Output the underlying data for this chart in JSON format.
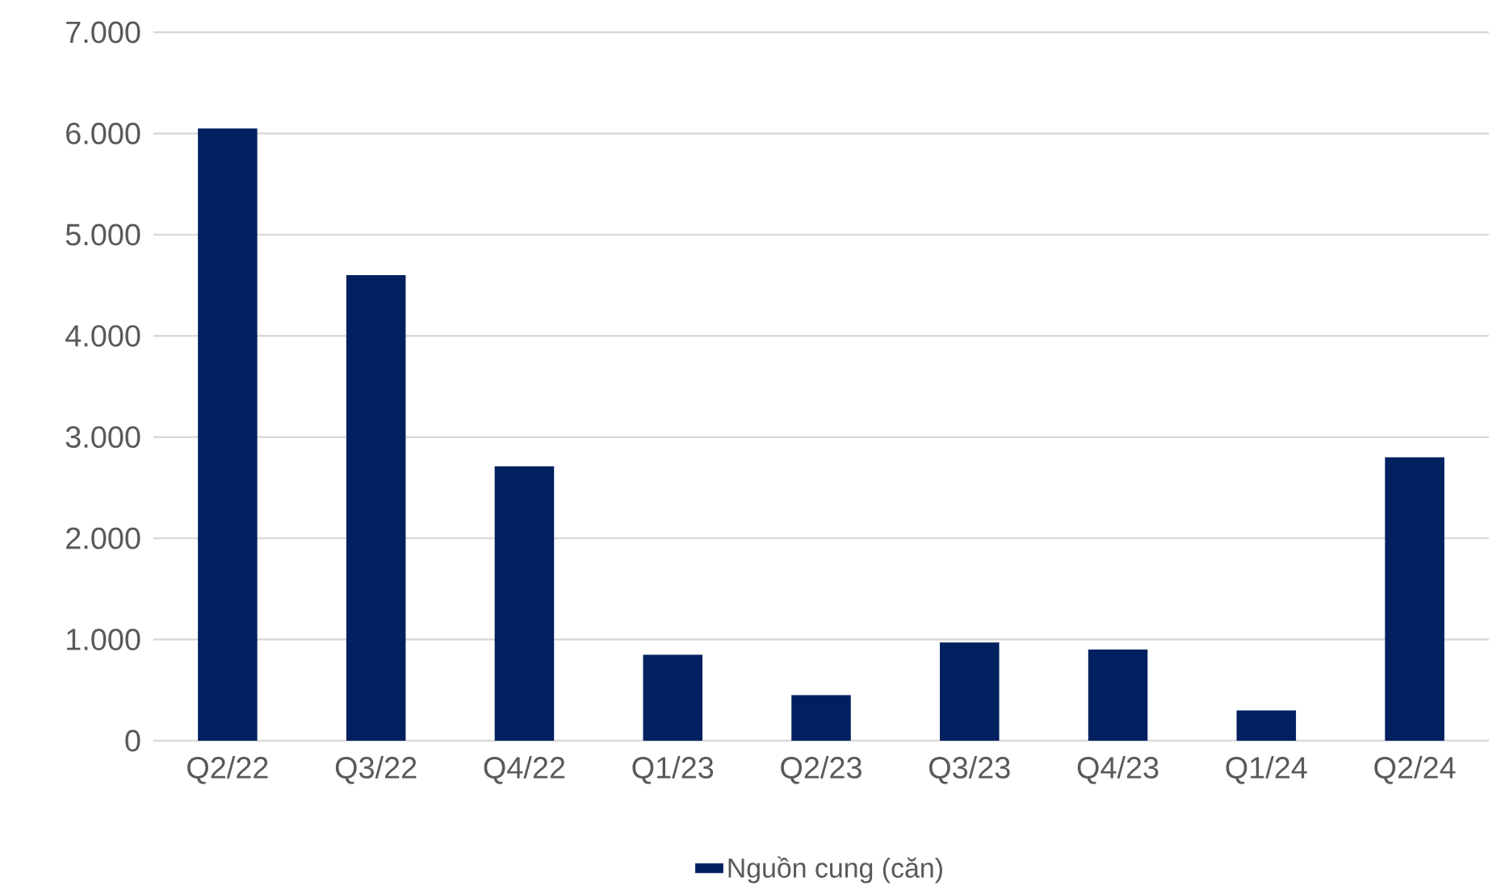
{
  "chart_data": {
    "type": "bar",
    "categories": [
      "Q2/22",
      "Q3/22",
      "Q4/22",
      "Q1/23",
      "Q2/23",
      "Q3/23",
      "Q4/23",
      "Q1/24",
      "Q2/24"
    ],
    "series": [
      {
        "name": "Nguồn cung (căn)",
        "color": "#002060",
        "values": [
          6050,
          4600,
          2710,
          850,
          450,
          970,
          900,
          300,
          2800
        ]
      }
    ],
    "ylim": [
      0,
      7000
    ],
    "yticks": [
      0,
      {
        "value": 1000,
        "label": "1.000"
      },
      {
        "value": 2000,
        "label": "2.000"
      },
      {
        "value": 3000,
        "label": "3.000"
      },
      {
        "value": 4000,
        "label": "4.000"
      },
      {
        "value": 5000,
        "label": "5.000"
      },
      {
        "value": 6000,
        "label": "6.000"
      },
      {
        "value": 7000,
        "label": "7.000"
      }
    ],
    "grid": "y",
    "legend": "bottom"
  }
}
